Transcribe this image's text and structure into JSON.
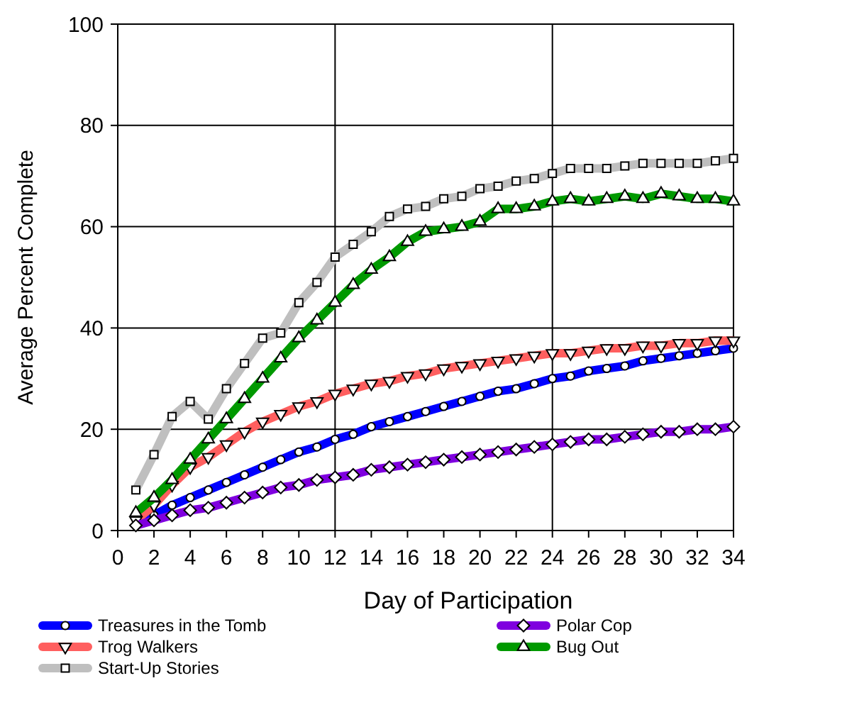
{
  "chart_data": {
    "type": "line",
    "xlabel": "Day of Participation",
    "ylabel": "Average Percent Complete",
    "x": [
      1,
      2,
      3,
      4,
      5,
      6,
      7,
      8,
      9,
      10,
      11,
      12,
      13,
      14,
      15,
      16,
      17,
      18,
      19,
      20,
      21,
      22,
      23,
      24,
      25,
      26,
      27,
      28,
      29,
      30,
      31,
      32,
      33,
      34
    ],
    "xlim": [
      0,
      34
    ],
    "xticks": [
      0,
      2,
      4,
      6,
      8,
      10,
      12,
      14,
      16,
      18,
      20,
      22,
      24,
      26,
      28,
      30,
      32,
      34
    ],
    "ylim": [
      0,
      100
    ],
    "yticks": [
      0,
      20,
      40,
      60,
      80,
      100
    ],
    "grid": "y",
    "legend": "bottom",
    "ref_lines": [
      {
        "axis": "x",
        "value": 12
      },
      {
        "axis": "x",
        "value": 24
      }
    ],
    "series": [
      {
        "name": "Treasures in the Tomb",
        "color": "#0000ff",
        "marker": "circle",
        "values": [
          1,
          3,
          5,
          6.5,
          8,
          9.5,
          11,
          12.5,
          14,
          15.5,
          16.5,
          18,
          19,
          20.5,
          21.5,
          22.5,
          23.5,
          24.5,
          25.5,
          26.5,
          27.5,
          28,
          29,
          30,
          30.5,
          31.5,
          32,
          32.5,
          33.5,
          34,
          34.5,
          35,
          35.5,
          36
        ]
      },
      {
        "name": "Trog Walkers",
        "color": "#ff5f5f",
        "marker": "triangle-down",
        "values": [
          2,
          5,
          9,
          12.5,
          14.5,
          17,
          19.5,
          21.5,
          23,
          24.5,
          25.5,
          27,
          28,
          29,
          29.5,
          30.5,
          31,
          32,
          32.5,
          33,
          33.5,
          34,
          34.5,
          35,
          35,
          35.5,
          36,
          36,
          36.5,
          36.5,
          37,
          37,
          37.5,
          37.5
        ]
      },
      {
        "name": "Start-Up Stories",
        "color": "#bfbfbf",
        "marker": "square",
        "values": [
          8,
          15,
          22.5,
          25.5,
          22,
          28,
          33,
          38,
          39,
          45,
          49,
          54,
          56.5,
          59,
          62,
          63.5,
          64,
          65.5,
          66,
          67.5,
          68,
          69,
          69.5,
          70.5,
          71.5,
          71.5,
          71.5,
          72,
          72.5,
          72.5,
          72.5,
          72.5,
          73,
          73.5
        ]
      },
      {
        "name": "Polar Cop",
        "color": "#7f00df",
        "marker": "diamond",
        "values": [
          1,
          2,
          3,
          4,
          4.5,
          5.5,
          6.5,
          7.5,
          8.5,
          9,
          10,
          10.5,
          11,
          12,
          12.5,
          13,
          13.5,
          14,
          14.5,
          15,
          15.5,
          16,
          16.5,
          17,
          17.5,
          18,
          18,
          18.5,
          19,
          19.5,
          19.5,
          20,
          20,
          20.5
        ]
      },
      {
        "name": "Bug Out",
        "color": "#009900",
        "marker": "triangle",
        "values": [
          3.5,
          6.5,
          10,
          14,
          18,
          22,
          26,
          30,
          34,
          38,
          41.5,
          45,
          48.5,
          51.5,
          54,
          57,
          59,
          59.5,
          60,
          61,
          63.5,
          63.5,
          64,
          65,
          65.5,
          65,
          65.5,
          66,
          65.5,
          66.5,
          66,
          65.5,
          65.5,
          65
        ]
      }
    ]
  }
}
